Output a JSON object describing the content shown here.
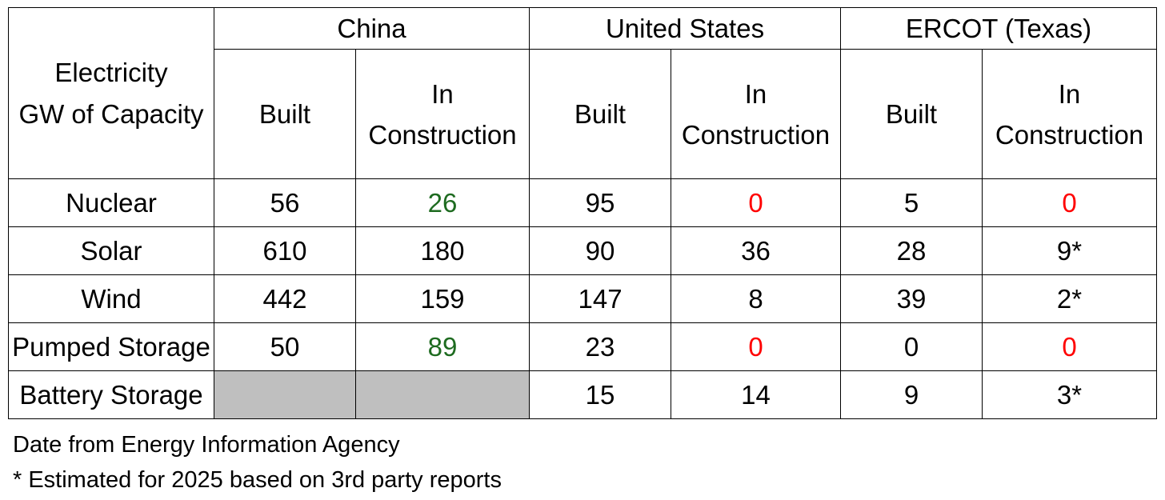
{
  "table": {
    "corner_label": [
      "Electricity",
      "GW of Capacity"
    ],
    "regions": [
      "China",
      "United States",
      "ERCOT (Texas)"
    ],
    "subheaders": {
      "built": "Built",
      "in_construction": [
        "In",
        "Construction"
      ]
    },
    "rows": [
      {
        "label": "Nuclear",
        "cells": [
          "56",
          "26",
          "95",
          "0",
          "5",
          "0"
        ]
      },
      {
        "label": "Solar",
        "cells": [
          "610",
          "180",
          "90",
          "36",
          "28",
          "9*"
        ]
      },
      {
        "label": "Wind",
        "cells": [
          "442",
          "159",
          "147",
          "8",
          "39",
          "2*"
        ]
      },
      {
        "label": "Pumped Storage",
        "cells": [
          "50",
          "89",
          "23",
          "0",
          "0",
          "0"
        ]
      },
      {
        "label": "Battery Storage",
        "cells": [
          "",
          "",
          "15",
          "14",
          "9",
          "3*"
        ]
      }
    ],
    "colors": {
      "highlight_green": "#1e6b20",
      "highlight_red": "#ff0000",
      "no_data_grey": "#bfbfbf"
    }
  },
  "notes": [
    "Date from Energy Information Agency",
    "* Estimated for 2025 based on 3rd party reports"
  ]
}
